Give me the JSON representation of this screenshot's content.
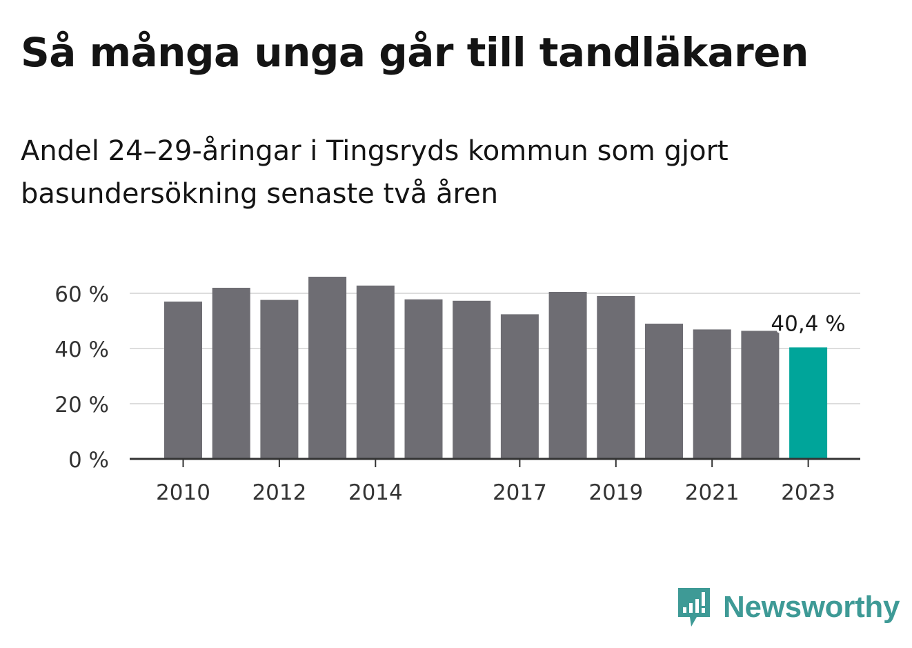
{
  "header": {
    "title": "Så många unga går till tandläkaren",
    "subtitle": "Andel 24–29-åringar i Tingsryds kommun som gjort basundersökning senaste två åren"
  },
  "brand": {
    "name": "Newsworthy",
    "logo_icon": "bar-chart-speech-bubble-icon",
    "color": "#3e9a96"
  },
  "colors": {
    "bar": "#6e6d73",
    "highlight": "#00a59a",
    "grid": "#dddddd",
    "axis": "#333333",
    "text": "#333333"
  },
  "chart_data": {
    "type": "bar",
    "categories": [
      "2010",
      "2011",
      "2012",
      "2013",
      "2014",
      "2015",
      "2016",
      "2017",
      "2018",
      "2019",
      "2020",
      "2021",
      "2022",
      "2023"
    ],
    "values": [
      57,
      62,
      57.6,
      66,
      62.8,
      57.8,
      57.3,
      52.4,
      60.5,
      59,
      49,
      46.9,
      46.4,
      40.4
    ],
    "highlight_index": 13,
    "annotation": "40,4 %",
    "x_tick_labels": [
      "2010",
      "2012",
      "2014",
      "2017",
      "2019",
      "2021",
      "2023"
    ],
    "y_ticks": [
      0,
      20,
      40,
      60
    ],
    "y_tick_labels": [
      "0 %",
      "20 %",
      "40 %",
      "60 %"
    ],
    "ylim": [
      0,
      66
    ],
    "grid": true,
    "xlabel": "",
    "ylabel": ""
  }
}
